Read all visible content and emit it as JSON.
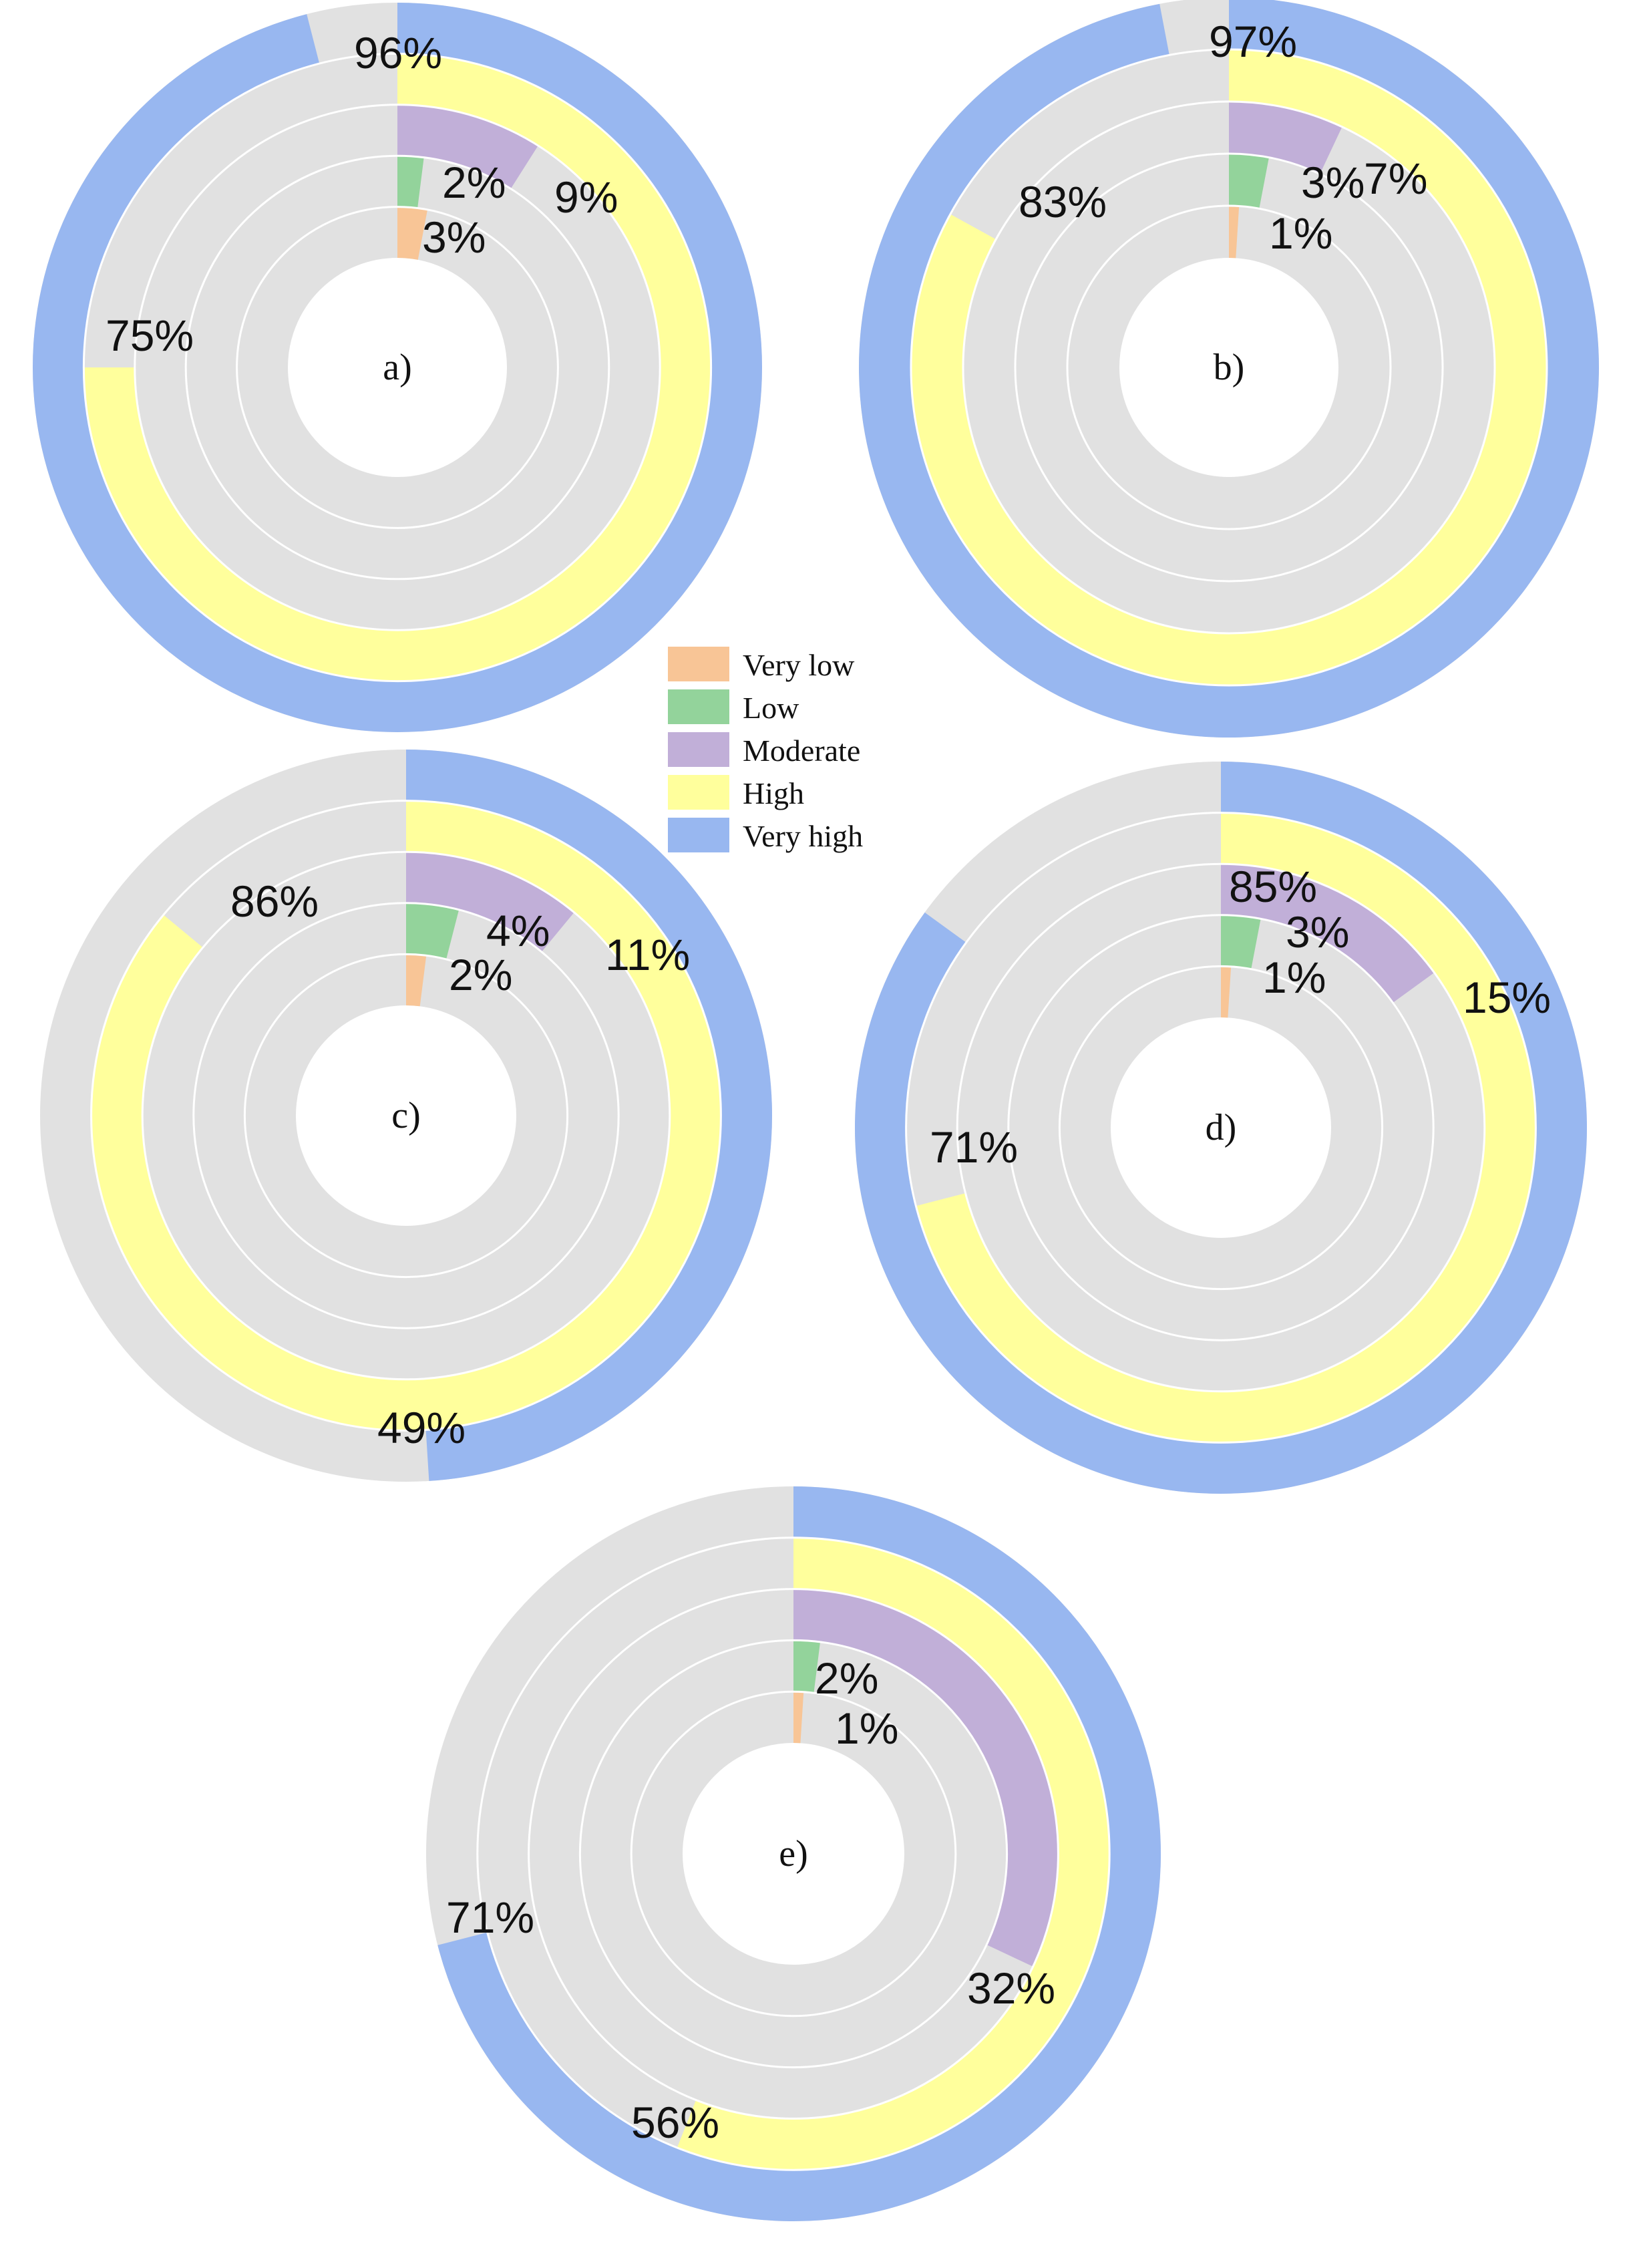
{
  "colors": {
    "very_low": "#F8C596",
    "low": "#93D39B",
    "moderate": "#C1AFD8",
    "high": "#FFFF9C",
    "very_high": "#98B7F0",
    "track": "#E1E1E1",
    "divider": "#FFFFFF"
  },
  "legend": {
    "items": [
      {
        "key": "very_low",
        "label": "Very low"
      },
      {
        "key": "low",
        "label": "Low"
      },
      {
        "key": "moderate",
        "label": "Moderate"
      },
      {
        "key": "high",
        "label": "High"
      },
      {
        "key": "very_high",
        "label": "Very high"
      }
    ]
  },
  "chart_data": [
    {
      "type": "radial-bar",
      "panel": "a)",
      "categories": [
        "Very low",
        "Low",
        "Moderate",
        "High",
        "Very high"
      ],
      "values": [
        3,
        2,
        9,
        75,
        96
      ],
      "labels": [
        "3%",
        "2%",
        "9%",
        "75%",
        "96%"
      ],
      "range": [
        0,
        100
      ]
    },
    {
      "type": "radial-bar",
      "panel": "b)",
      "categories": [
        "Very low",
        "Low",
        "Moderate",
        "High",
        "Very high"
      ],
      "values": [
        1,
        3,
        7,
        83,
        97
      ],
      "labels": [
        "1%",
        "3%",
        "7%",
        "83%",
        "97%"
      ],
      "range": [
        0,
        100
      ]
    },
    {
      "type": "radial-bar",
      "panel": "c)",
      "categories": [
        "Very low",
        "Low",
        "Moderate",
        "High",
        "Very high"
      ],
      "values": [
        2,
        4,
        11,
        86,
        49
      ],
      "labels": [
        "2%",
        "4%",
        "11%",
        "86%",
        "49%"
      ],
      "range": [
        0,
        100
      ]
    },
    {
      "type": "radial-bar",
      "panel": "d)",
      "categories": [
        "Very low",
        "Low",
        "Moderate",
        "High",
        "Very high"
      ],
      "values": [
        1,
        3,
        15,
        71,
        85
      ],
      "labels": [
        "1%",
        "3%",
        "15%",
        "71%",
        "85%"
      ],
      "range": [
        0,
        100
      ]
    },
    {
      "type": "radial-bar",
      "panel": "e)",
      "categories": [
        "Very low",
        "Low",
        "Moderate",
        "High",
        "Very high"
      ],
      "values": [
        1,
        2,
        32,
        56,
        71
      ],
      "labels": [
        "1%",
        "2%",
        "32%",
        "56%",
        "71%"
      ],
      "range": [
        0,
        100
      ]
    }
  ]
}
